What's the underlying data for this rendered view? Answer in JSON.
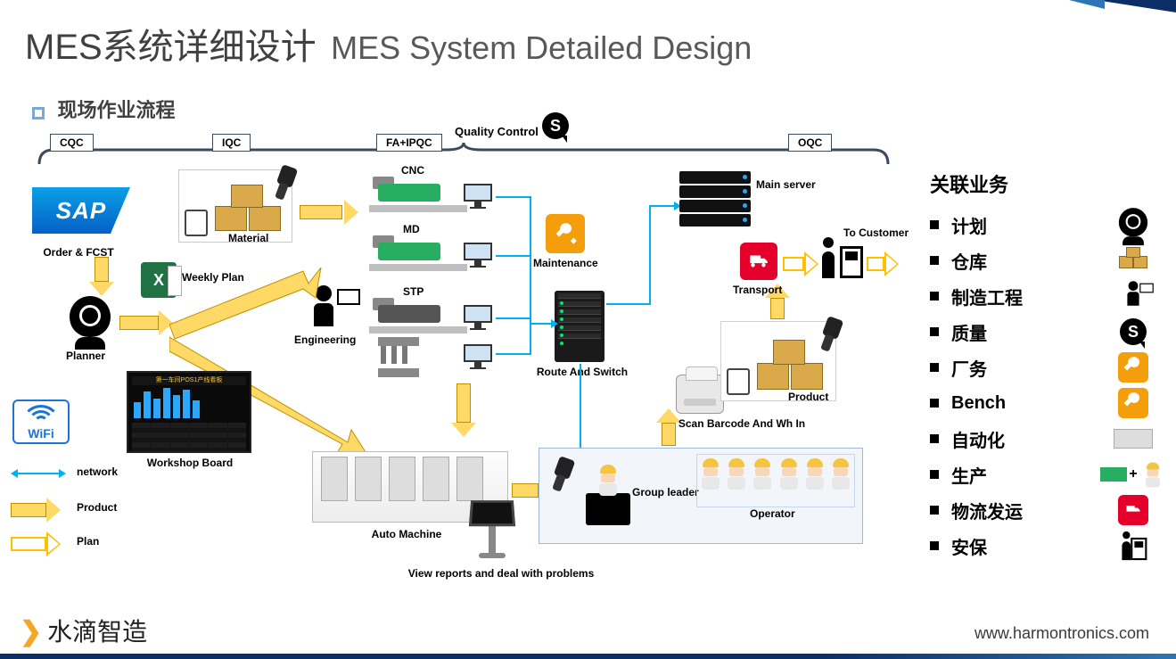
{
  "title_cn": "MES系统详细设计",
  "title_en": "MES System Detailed Design",
  "subtitle": "现场作业流程",
  "colors": {
    "accent_blue": "#1e73d8",
    "arrow_fill": "#ffd966",
    "arrow_border": "#bf9000",
    "cyan": "#00b0f0",
    "brand_red": "#e4002b",
    "brand_green": "#27ae60",
    "badge_orange": "#f59e0b",
    "text_dark": "#404040",
    "brace_color": "#3b4a5c"
  },
  "brace": {
    "labels": [
      "CQC",
      "IQC",
      "FA+IPQC",
      "OQC"
    ],
    "qc_label": "Quality Control"
  },
  "nodes": {
    "sap": "SAP",
    "order": "Order & FCST",
    "planner": "Planner",
    "weekly": "Weekly Plan",
    "material": "Material",
    "cnc": "CNC",
    "md": "MD",
    "stp": "STP",
    "engineering": "Engineering",
    "maintenance": "Maintenance",
    "route": "Route And Switch",
    "main_server": "Main server",
    "auto": "Auto Machine",
    "view": "View reports and deal with problems",
    "workshop": "Workshop Board",
    "group_leader": "Group leader",
    "operator": "Operator",
    "scan": "Scan Barcode And Wh In",
    "product": "Product",
    "transport": "Transport",
    "to_customer": "To Customer"
  },
  "legend": {
    "wifi": "WiFi",
    "network": "network",
    "product": "Product",
    "plan": "Plan"
  },
  "right": {
    "title": "关联业务",
    "items": [
      "计划",
      "仓库",
      "制造工程",
      "质量",
      "厂务",
      "Bench",
      "自动化",
      "生产",
      "物流发运",
      "安保"
    ]
  },
  "footer": {
    "brand": "水滴智造",
    "url": "www.harmontronics.com"
  },
  "layout": {
    "operator_count": 6,
    "workshop_bars": [
      18,
      30,
      22,
      34,
      26,
      32,
      20
    ]
  }
}
